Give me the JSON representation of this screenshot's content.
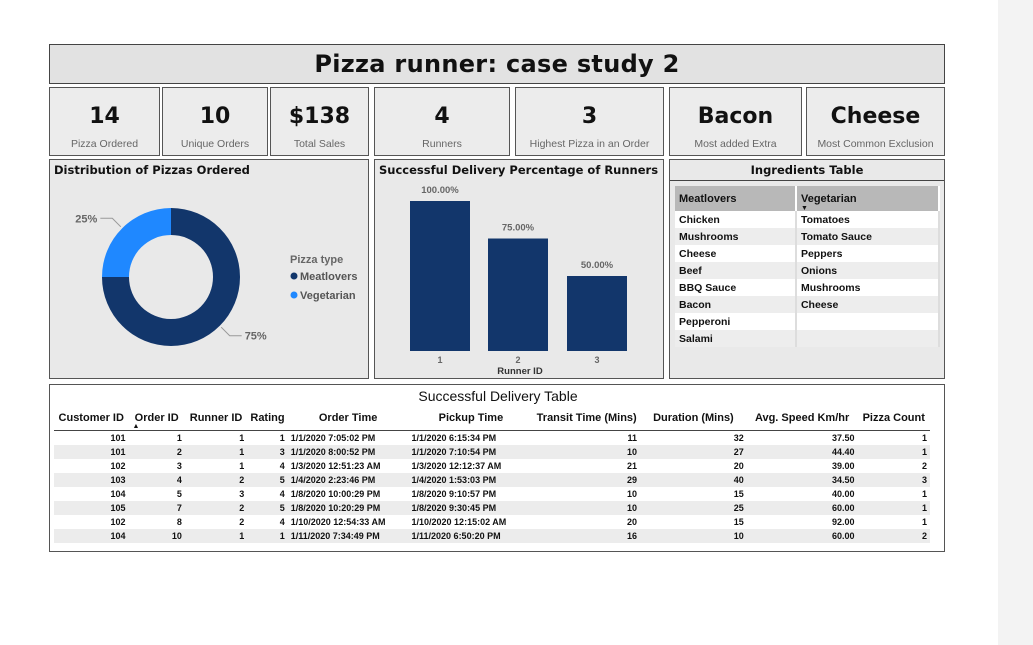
{
  "title": "Pizza runner: case study 2",
  "kpis": [
    {
      "value": "14",
      "label": "Pizza Ordered"
    },
    {
      "value": "10",
      "label": "Unique Orders"
    },
    {
      "value": "$138",
      "label": "Total Sales"
    },
    {
      "value": "4",
      "label": "Runners"
    },
    {
      "value": "3",
      "label": "Highest  Pizza in an Order"
    },
    {
      "value": "Bacon",
      "label": "Most added Extra"
    },
    {
      "value": "Cheese",
      "label": "Most Common Exclusion"
    }
  ],
  "donut": {
    "title": "Distribution of Pizzas Ordered",
    "legend_title": "Pizza type",
    "colors": {
      "Meatlovers": "#12366b",
      "Vegetarian": "#1f88ff"
    },
    "chart_data": {
      "type": "pie",
      "categories": [
        "Meatlovers",
        "Vegetarian"
      ],
      "values": [
        75,
        25
      ],
      "value_labels": [
        "75%",
        "25%"
      ]
    }
  },
  "bar": {
    "title": "Successful Delivery Percentage of Runners",
    "color": "#12366b",
    "chart_data": {
      "type": "bar",
      "categories": [
        "1",
        "2",
        "3"
      ],
      "values": [
        100,
        75,
        50
      ],
      "value_labels": [
        "100.00%",
        "75.00%",
        "50.00%"
      ],
      "xlabel": "Runner ID",
      "ylim": [
        0,
        100
      ]
    }
  },
  "ingredients": {
    "title": "Ingredients Table",
    "headers": [
      "Meatlovers",
      "Vegetarian"
    ],
    "rows": [
      [
        "Chicken",
        "Tomatoes"
      ],
      [
        "Mushrooms",
        "Tomato Sauce"
      ],
      [
        "Cheese",
        "Peppers"
      ],
      [
        "Beef",
        "Onions"
      ],
      [
        "BBQ Sauce",
        "Mushrooms"
      ],
      [
        "Bacon",
        "Cheese"
      ],
      [
        "Pepperoni",
        ""
      ],
      [
        "Salami",
        ""
      ]
    ]
  },
  "delivery": {
    "title": "Successful Delivery Table",
    "headers": [
      "Customer ID",
      "Order ID",
      "Runner ID",
      "Rating",
      "Order Time",
      "Pickup Time",
      "Transit Time (Mins)",
      "Duration (Mins)",
      "Avg. Speed Km/hr",
      "Pizza Count"
    ],
    "rows": [
      [
        "101",
        "1",
        "1",
        "1",
        "1/1/2020 7:05:02 PM",
        "1/1/2020 6:15:34 PM",
        "11",
        "32",
        "37.50",
        "1"
      ],
      [
        "101",
        "2",
        "1",
        "3",
        "1/1/2020 8:00:52 PM",
        "1/1/2020 7:10:54 PM",
        "10",
        "27",
        "44.40",
        "1"
      ],
      [
        "102",
        "3",
        "1",
        "4",
        "1/3/2020 12:51:23 AM",
        "1/3/2020 12:12:37 AM",
        "21",
        "20",
        "39.00",
        "2"
      ],
      [
        "103",
        "4",
        "2",
        "5",
        "1/4/2020 2:23:46 PM",
        "1/4/2020 1:53:03 PM",
        "29",
        "40",
        "34.50",
        "3"
      ],
      [
        "104",
        "5",
        "3",
        "4",
        "1/8/2020 10:00:29 PM",
        "1/8/2020 9:10:57 PM",
        "10",
        "15",
        "40.00",
        "1"
      ],
      [
        "105",
        "7",
        "2",
        "5",
        "1/8/2020 10:20:29 PM",
        "1/8/2020 9:30:45 PM",
        "10",
        "25",
        "60.00",
        "1"
      ],
      [
        "102",
        "8",
        "2",
        "4",
        "1/10/2020 12:54:33 AM",
        "1/10/2020 12:15:02 AM",
        "20",
        "15",
        "92.00",
        "1"
      ],
      [
        "104",
        "10",
        "1",
        "1",
        "1/11/2020 7:34:49 PM",
        "1/11/2020 6:50:20 PM",
        "16",
        "10",
        "60.00",
        "2"
      ]
    ]
  }
}
